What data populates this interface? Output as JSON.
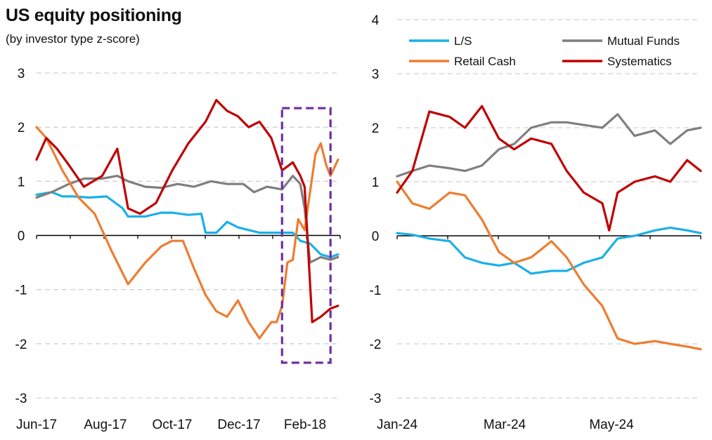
{
  "title": "US equity positioning",
  "subtitle": "(by investor type z-score)",
  "chart_data": [
    {
      "type": "line",
      "panel": "left",
      "x_ticks": [
        "Jun-17",
        "Aug-17",
        "Oct-17",
        "Dec-17",
        "Feb-18"
      ],
      "x_range": [
        "2017-06-01",
        "2018-03-10"
      ],
      "ylim": [
        -3,
        3
      ],
      "y_ticks": [
        3,
        2,
        1,
        0,
        -1,
        -2,
        -3
      ],
      "grid": "horizontal dashed",
      "highlight_box": {
        "x_start": "2018-01-15",
        "x_end": "2018-03-01",
        "y_top": 2.35,
        "y_bottom": -2.35,
        "color": "#7030a0",
        "style": "dashed"
      },
      "series": [
        {
          "name": "L/S",
          "color": "#1ab0e8",
          "x": [
            "2017-06-01",
            "2017-06-15",
            "2017-06-25",
            "2017-07-05",
            "2017-07-20",
            "2017-08-05",
            "2017-08-20",
            "2017-08-25",
            "2017-09-10",
            "2017-09-25",
            "2017-10-05",
            "2017-10-20",
            "2017-11-01",
            "2017-11-05",
            "2017-11-15",
            "2017-11-25",
            "2017-12-05",
            "2017-12-15",
            "2017-12-25",
            "2018-01-05",
            "2018-01-15",
            "2018-01-25",
            "2018-02-01",
            "2018-02-10",
            "2018-02-20",
            "2018-03-01",
            "2018-03-08"
          ],
          "values": [
            0.75,
            0.8,
            0.72,
            0.72,
            0.7,
            0.72,
            0.5,
            0.35,
            0.35,
            0.42,
            0.42,
            0.38,
            0.4,
            0.05,
            0.05,
            0.25,
            0.15,
            0.1,
            0.05,
            0.05,
            0.05,
            0.05,
            -0.1,
            -0.15,
            -0.35,
            -0.4,
            -0.35
          ]
        },
        {
          "name": "Mutual Funds",
          "color": "#7f7f7f",
          "x": [
            "2017-06-01",
            "2017-06-15",
            "2017-07-01",
            "2017-07-15",
            "2017-08-01",
            "2017-08-15",
            "2017-08-25",
            "2017-09-10",
            "2017-09-25",
            "2017-10-10",
            "2017-10-25",
            "2017-11-10",
            "2017-11-25",
            "2017-12-10",
            "2017-12-20",
            "2018-01-01",
            "2018-01-15",
            "2018-01-25",
            "2018-02-01",
            "2018-02-05",
            "2018-02-10",
            "2018-02-20",
            "2018-03-01",
            "2018-03-08"
          ],
          "values": [
            0.7,
            0.8,
            0.95,
            1.05,
            1.05,
            1.1,
            1.0,
            0.9,
            0.88,
            0.95,
            0.9,
            1.0,
            0.95,
            0.95,
            0.8,
            0.9,
            0.85,
            1.1,
            0.95,
            0.5,
            -0.5,
            -0.4,
            -0.45,
            -0.4
          ]
        },
        {
          "name": "Retail Cash",
          "color": "#ed7d31",
          "x": [
            "2017-06-01",
            "2017-06-10",
            "2017-06-25",
            "2017-07-10",
            "2017-07-25",
            "2017-08-10",
            "2017-08-25",
            "2017-09-10",
            "2017-09-25",
            "2017-10-05",
            "2017-10-15",
            "2017-10-25",
            "2017-11-05",
            "2017-11-15",
            "2017-11-25",
            "2017-12-05",
            "2017-12-15",
            "2017-12-25",
            "2018-01-05",
            "2018-01-10",
            "2018-01-15",
            "2018-01-20",
            "2018-01-25",
            "2018-01-30",
            "2018-02-05",
            "2018-02-10",
            "2018-02-15",
            "2018-02-20",
            "2018-02-25",
            "2018-03-01",
            "2018-03-08"
          ],
          "values": [
            2.0,
            1.8,
            1.2,
            0.7,
            0.4,
            -0.3,
            -0.9,
            -0.5,
            -0.2,
            -0.1,
            -0.1,
            -0.6,
            -1.1,
            -1.4,
            -1.5,
            -1.2,
            -1.6,
            -1.9,
            -1.6,
            -1.6,
            -1.3,
            -0.5,
            -0.45,
            0.3,
            0.1,
            0.8,
            1.5,
            1.7,
            1.3,
            1.1,
            1.4
          ]
        },
        {
          "name": "Systematics",
          "color": "#c00000",
          "x": [
            "2017-06-01",
            "2017-06-10",
            "2017-06-20",
            "2017-07-01",
            "2017-07-15",
            "2017-08-01",
            "2017-08-15",
            "2017-08-25",
            "2017-09-05",
            "2017-09-20",
            "2017-10-05",
            "2017-10-20",
            "2017-11-05",
            "2017-11-15",
            "2017-11-25",
            "2017-12-05",
            "2017-12-15",
            "2017-12-25",
            "2018-01-05",
            "2018-01-15",
            "2018-01-25",
            "2018-02-01",
            "2018-02-05",
            "2018-02-12",
            "2018-02-20",
            "2018-03-01",
            "2018-03-08"
          ],
          "values": [
            1.4,
            1.8,
            1.6,
            1.3,
            0.9,
            1.1,
            1.6,
            0.5,
            0.4,
            0.6,
            1.2,
            1.7,
            2.1,
            2.5,
            2.3,
            2.2,
            2.0,
            2.1,
            1.8,
            1.2,
            1.35,
            1.1,
            0.9,
            -1.6,
            -1.5,
            -1.35,
            -1.3
          ]
        }
      ]
    },
    {
      "type": "line",
      "panel": "right",
      "x_ticks": [
        "Jan-24",
        "Mar-24",
        "May-24"
      ],
      "x_range": [
        "2024-01-01",
        "2024-06-28"
      ],
      "ylim": [
        -3,
        4
      ],
      "y_ticks": [
        4,
        3,
        2,
        1,
        0,
        -1,
        -2,
        -3
      ],
      "grid": "horizontal dashed",
      "series": [
        {
          "name": "L/S",
          "color": "#1ab0e8",
          "x": [
            "2024-01-01",
            "2024-01-10",
            "2024-01-20",
            "2024-02-01",
            "2024-02-10",
            "2024-02-20",
            "2024-03-01",
            "2024-03-10",
            "2024-03-20",
            "2024-04-01",
            "2024-04-10",
            "2024-04-20",
            "2024-05-01",
            "2024-05-10",
            "2024-05-20",
            "2024-06-01",
            "2024-06-10",
            "2024-06-20",
            "2024-06-28"
          ],
          "values": [
            0.05,
            0.02,
            -0.05,
            -0.1,
            -0.4,
            -0.5,
            -0.55,
            -0.5,
            -0.7,
            -0.65,
            -0.65,
            -0.5,
            -0.4,
            -0.05,
            0.0,
            0.1,
            0.15,
            0.1,
            0.05
          ]
        },
        {
          "name": "Mutual Funds",
          "color": "#7f7f7f",
          "x": [
            "2024-01-01",
            "2024-01-10",
            "2024-01-20",
            "2024-02-01",
            "2024-02-10",
            "2024-02-20",
            "2024-03-01",
            "2024-03-10",
            "2024-03-20",
            "2024-04-01",
            "2024-04-10",
            "2024-04-20",
            "2024-05-01",
            "2024-05-10",
            "2024-05-20",
            "2024-06-01",
            "2024-06-10",
            "2024-06-20",
            "2024-06-28"
          ],
          "values": [
            1.1,
            1.2,
            1.3,
            1.25,
            1.2,
            1.3,
            1.6,
            1.7,
            2.0,
            2.1,
            2.1,
            2.05,
            2.0,
            2.25,
            1.85,
            1.95,
            1.7,
            1.95,
            2.0
          ]
        },
        {
          "name": "Retail Cash",
          "color": "#ed7d31",
          "x": [
            "2024-01-01",
            "2024-01-10",
            "2024-01-20",
            "2024-02-01",
            "2024-02-10",
            "2024-02-20",
            "2024-03-01",
            "2024-03-10",
            "2024-03-20",
            "2024-04-01",
            "2024-04-10",
            "2024-04-20",
            "2024-05-01",
            "2024-05-10",
            "2024-05-20",
            "2024-06-01",
            "2024-06-10",
            "2024-06-20",
            "2024-06-28"
          ],
          "values": [
            1.0,
            0.6,
            0.5,
            0.8,
            0.75,
            0.3,
            -0.3,
            -0.5,
            -0.4,
            -0.1,
            -0.4,
            -0.9,
            -1.3,
            -1.9,
            -2.0,
            -1.95,
            -2.0,
            -2.05,
            -2.1
          ]
        },
        {
          "name": "Systematics",
          "color": "#c00000",
          "x": [
            "2024-01-01",
            "2024-01-10",
            "2024-01-20",
            "2024-02-01",
            "2024-02-10",
            "2024-02-20",
            "2024-03-01",
            "2024-03-10",
            "2024-03-20",
            "2024-04-01",
            "2024-04-10",
            "2024-04-20",
            "2024-05-01",
            "2024-05-05",
            "2024-05-10",
            "2024-05-20",
            "2024-06-01",
            "2024-06-10",
            "2024-06-20",
            "2024-06-28"
          ],
          "values": [
            0.8,
            1.2,
            2.3,
            2.2,
            2.0,
            2.4,
            1.8,
            1.6,
            1.8,
            1.7,
            1.2,
            0.8,
            0.6,
            0.1,
            0.8,
            1.0,
            1.1,
            1.0,
            1.4,
            1.2
          ]
        }
      ]
    }
  ],
  "legend": {
    "placement": "top-right",
    "items": [
      {
        "label": "L/S",
        "color": "#1ab0e8"
      },
      {
        "label": "Mutual Funds",
        "color": "#7f7f7f"
      },
      {
        "label": "Retail Cash",
        "color": "#ed7d31"
      },
      {
        "label": "Systematics",
        "color": "#c00000"
      }
    ]
  }
}
